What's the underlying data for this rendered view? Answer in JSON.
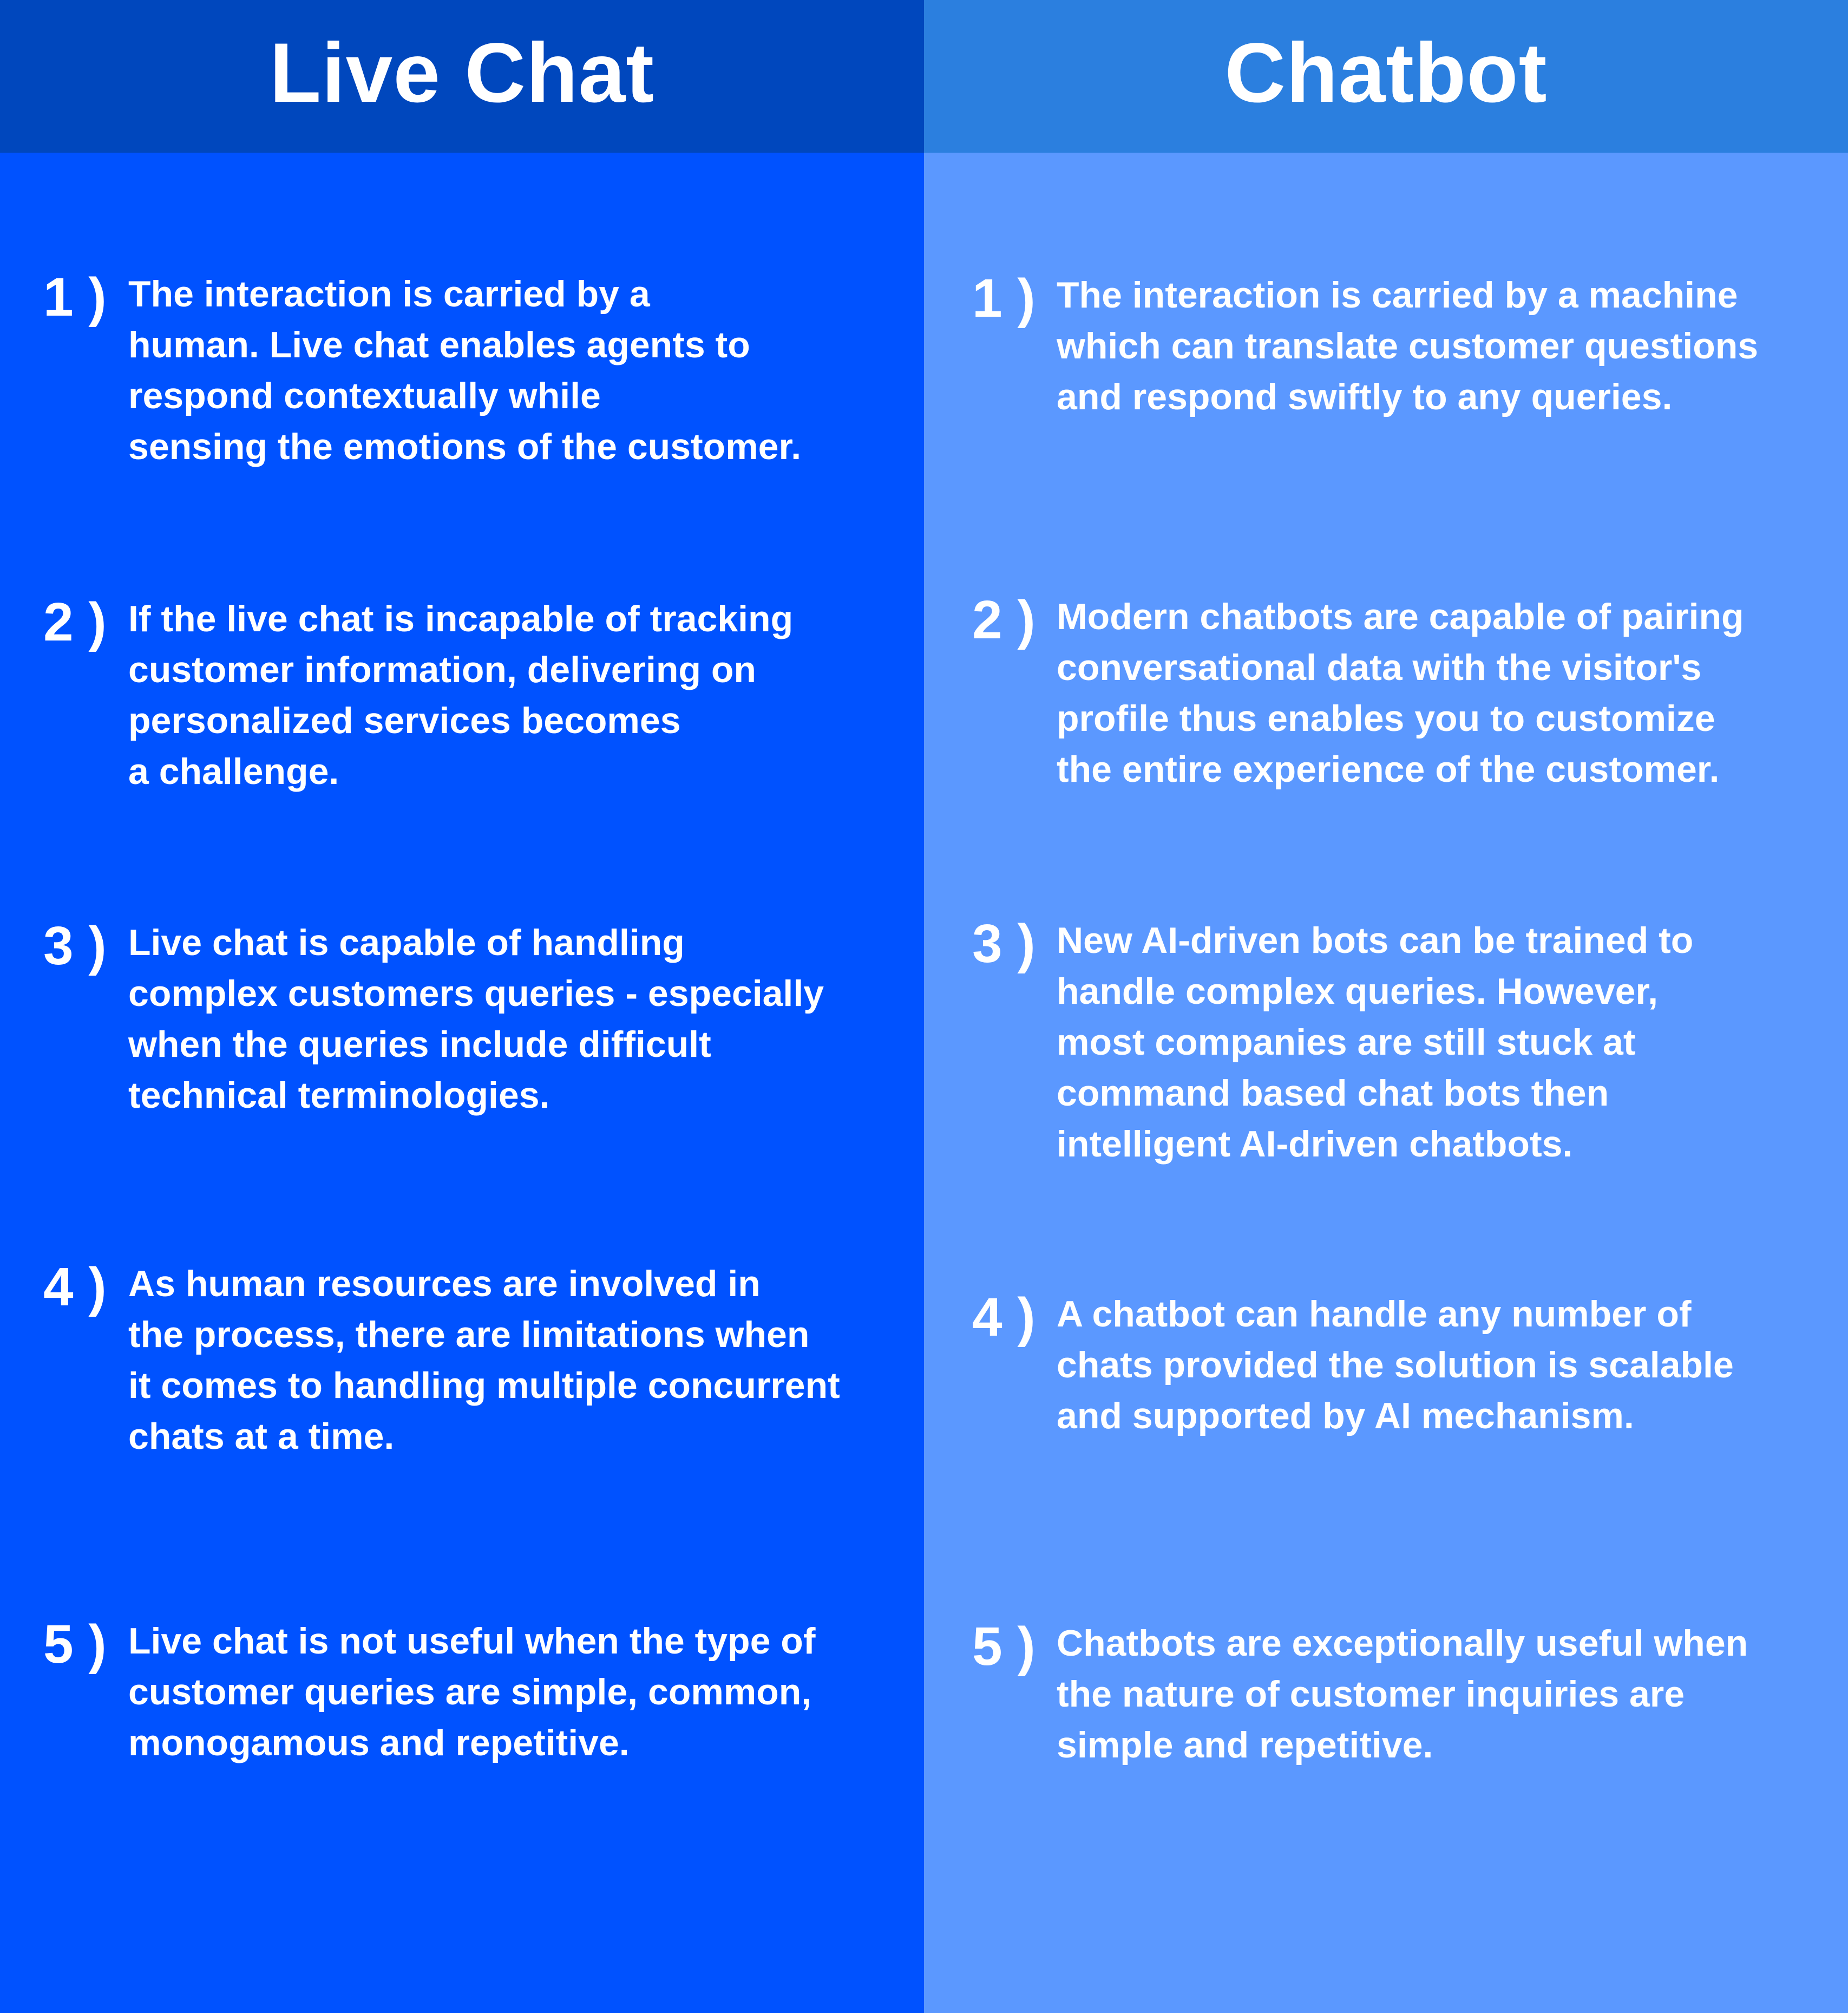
{
  "colors": {
    "left_header_bg": "#0047bd",
    "left_body_bg": "#0052ff",
    "right_header_bg": "#2b7fdf",
    "right_body_bg": "#5b98ff",
    "text": "#ffffff"
  },
  "left": {
    "title": "Live Chat",
    "items": [
      {
        "number": "1 )",
        "lines": [
          "The interaction is carried by a",
          "human. Live chat enables agents to",
          "respond contextually while",
          "sensing the emotions of the customer."
        ]
      },
      {
        "number": "2 )",
        "lines": [
          "If the live chat is incapable of tracking",
          "customer information, delivering on",
          "personalized services becomes",
          "a challenge."
        ]
      },
      {
        "number": "3 )",
        "lines": [
          "Live chat is capable of handling",
          "complex customers queries - especially",
          "when the queries include difficult",
          "technical terminologies."
        ]
      },
      {
        "number": "4 )",
        "lines": [
          "As human resources are involved in",
          "the process, there are limitations when",
          "it comes to handling multiple concurrent",
          "chats at a time."
        ]
      },
      {
        "number": "5 )",
        "lines": [
          "Live chat is not useful when the type of",
          "customer queries are simple, common,",
          "monogamous and repetitive."
        ]
      }
    ]
  },
  "right": {
    "title": "Chatbot",
    "items": [
      {
        "number": "1 )",
        "lines": [
          "The interaction is carried by a machine",
          "which can translate customer questions",
          "and respond swiftly to any queries."
        ]
      },
      {
        "number": "2 )",
        "lines": [
          "Modern chatbots are capable of pairing",
          "conversational data with the visitor's",
          "profile thus enables you to customize",
          "the entire experience of the customer."
        ]
      },
      {
        "number": "3 )",
        "lines": [
          "New AI-driven bots can be trained to",
          "handle complex queries. However,",
          "most companies are still stuck at",
          "command based chat bots then",
          "intelligent AI-driven chatbots."
        ]
      },
      {
        "number": "4 )",
        "lines": [
          "A chatbot can handle any number of",
          "chats provided the solution is scalable",
          "and supported by AI mechanism."
        ]
      },
      {
        "number": "5 )",
        "lines": [
          "Chatbots are exceptionally useful when",
          "the nature of customer inquiries are",
          "simple and repetitive."
        ]
      }
    ]
  }
}
